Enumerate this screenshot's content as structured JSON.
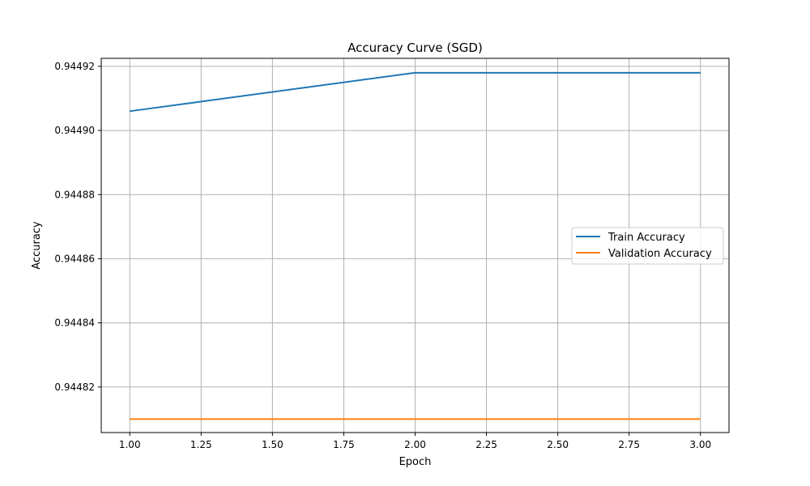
{
  "chart_data": {
    "type": "line",
    "title": "Accuracy Curve (SGD)",
    "xlabel": "Epoch",
    "ylabel": "Accuracy",
    "x": [
      1.0,
      2.0,
      3.0
    ],
    "series": [
      {
        "name": "Train Accuracy",
        "color": "#1f77b4",
        "values": [
          0.944906,
          0.944918,
          0.944918
        ]
      },
      {
        "name": "Validation Accuracy",
        "color": "#ff7f0e",
        "values": [
          0.94481,
          0.94481,
          0.94481
        ]
      }
    ],
    "xlim": [
      0.9,
      3.1
    ],
    "ylim": [
      0.9448058,
      0.9449225
    ],
    "xticks": [
      1.0,
      1.25,
      1.5,
      1.75,
      2.0,
      2.25,
      2.5,
      2.75,
      3.0
    ],
    "xtick_labels": [
      "1.00",
      "1.25",
      "1.50",
      "1.75",
      "2.00",
      "2.25",
      "2.50",
      "2.75",
      "3.00"
    ],
    "yticks": [
      0.94482,
      0.94484,
      0.94486,
      0.94488,
      0.9449,
      0.94492
    ],
    "ytick_labels": [
      "0.94482",
      "0.94484",
      "0.94486",
      "0.94488",
      "0.94490",
      "0.94492"
    ],
    "grid": true,
    "legend_position": "center-right"
  }
}
